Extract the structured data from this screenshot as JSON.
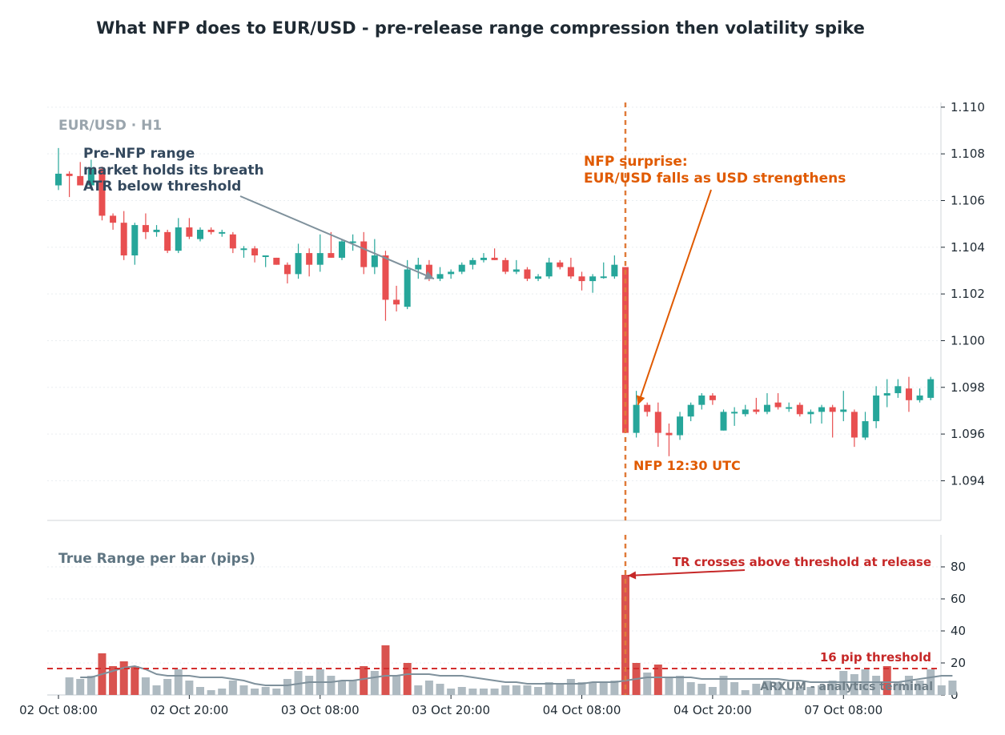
{
  "title": "What NFP does to EUR/USD - pre-release range compression then volatility spike",
  "watermark": "ARXUM - analytics terminal",
  "chart_data": [
    {
      "type": "candlestick",
      "panel_label": "EUR/USD · H1",
      "ylim": [
        1.0923,
        1.1102
      ],
      "yticks": [
        "1.094",
        "1.096",
        "1.098",
        "1.100",
        "1.102",
        "1.104",
        "1.106",
        "1.108",
        "1.110"
      ],
      "xtick_labels": [
        "02 Oct 08:00",
        "02 Oct 20:00",
        "03 Oct 08:00",
        "03 Oct 20:00",
        "04 Oct 08:00",
        "04 Oct 20:00",
        "07 Oct 08:00"
      ],
      "xtick_bar_index": [
        0,
        12,
        24,
        36,
        48,
        60,
        72
      ],
      "release_bar_index": 52,
      "candles": [
        {
          "o": 1.10665,
          "h": 1.10825,
          "l": 1.10645,
          "c": 1.10715
        },
        {
          "o": 1.10715,
          "h": 1.10725,
          "l": 1.10615,
          "c": 1.10705
        },
        {
          "o": 1.10705,
          "h": 1.10765,
          "l": 1.10665,
          "c": 1.10665
        },
        {
          "o": 1.10665,
          "h": 1.10775,
          "l": 1.10655,
          "c": 1.10735
        },
        {
          "o": 1.10735,
          "h": 1.10745,
          "l": 1.10515,
          "c": 1.10535
        },
        {
          "o": 1.10535,
          "h": 1.10545,
          "l": 1.10475,
          "c": 1.10505
        },
        {
          "o": 1.10505,
          "h": 1.10555,
          "l": 1.10345,
          "c": 1.10365
        },
        {
          "o": 1.10365,
          "h": 1.10505,
          "l": 1.10325,
          "c": 1.10495
        },
        {
          "o": 1.10495,
          "h": 1.10545,
          "l": 1.10435,
          "c": 1.10465
        },
        {
          "o": 1.10465,
          "h": 1.10495,
          "l": 1.10445,
          "c": 1.10475
        },
        {
          "o": 1.10465,
          "h": 1.10475,
          "l": 1.10375,
          "c": 1.10385
        },
        {
          "o": 1.10385,
          "h": 1.10525,
          "l": 1.10375,
          "c": 1.10485
        },
        {
          "o": 1.10485,
          "h": 1.10525,
          "l": 1.10435,
          "c": 1.10445
        },
        {
          "o": 1.10435,
          "h": 1.10485,
          "l": 1.10425,
          "c": 1.10475
        },
        {
          "o": 1.10475,
          "h": 1.10485,
          "l": 1.10455,
          "c": 1.10465
        },
        {
          "o": 1.10465,
          "h": 1.10475,
          "l": 1.10445,
          "c": 1.10465
        },
        {
          "o": 1.10455,
          "h": 1.10465,
          "l": 1.10375,
          "c": 1.10395
        },
        {
          "o": 1.10395,
          "h": 1.10405,
          "l": 1.10355,
          "c": 1.10395
        },
        {
          "o": 1.10395,
          "h": 1.10405,
          "l": 1.10335,
          "c": 1.10365
        },
        {
          "o": 1.10365,
          "h": 1.10365,
          "l": 1.10315,
          "c": 1.10365
        },
        {
          "o": 1.10355,
          "h": 1.10355,
          "l": 1.10325,
          "c": 1.10325
        },
        {
          "o": 1.10325,
          "h": 1.10335,
          "l": 1.10245,
          "c": 1.10285
        },
        {
          "o": 1.10285,
          "h": 1.10415,
          "l": 1.10265,
          "c": 1.10375
        },
        {
          "o": 1.10375,
          "h": 1.10395,
          "l": 1.10275,
          "c": 1.10325
        },
        {
          "o": 1.10325,
          "h": 1.10455,
          "l": 1.10295,
          "c": 1.10375
        },
        {
          "o": 1.10375,
          "h": 1.10465,
          "l": 1.10355,
          "c": 1.10355
        },
        {
          "o": 1.10355,
          "h": 1.10435,
          "l": 1.10345,
          "c": 1.10425
        },
        {
          "o": 1.10425,
          "h": 1.10455,
          "l": 1.10385,
          "c": 1.10425
        },
        {
          "o": 1.10425,
          "h": 1.10465,
          "l": 1.10285,
          "c": 1.10315
        },
        {
          "o": 1.10315,
          "h": 1.10435,
          "l": 1.10285,
          "c": 1.10365
        },
        {
          "o": 1.10365,
          "h": 1.10385,
          "l": 1.10085,
          "c": 1.10175
        },
        {
          "o": 1.10175,
          "h": 1.10235,
          "l": 1.10125,
          "c": 1.10155
        },
        {
          "o": 1.10145,
          "h": 1.10345,
          "l": 1.10135,
          "c": 1.10305
        },
        {
          "o": 1.10305,
          "h": 1.10355,
          "l": 1.10265,
          "c": 1.10325
        },
        {
          "o": 1.10325,
          "h": 1.10345,
          "l": 1.10255,
          "c": 1.10265
        },
        {
          "o": 1.10265,
          "h": 1.10315,
          "l": 1.10255,
          "c": 1.10285
        },
        {
          "o": 1.10285,
          "h": 1.10305,
          "l": 1.10265,
          "c": 1.10295
        },
        {
          "o": 1.10295,
          "h": 1.10335,
          "l": 1.10285,
          "c": 1.10325
        },
        {
          "o": 1.10325,
          "h": 1.10355,
          "l": 1.10305,
          "c": 1.10345
        },
        {
          "o": 1.10345,
          "h": 1.10375,
          "l": 1.10335,
          "c": 1.10355
        },
        {
          "o": 1.10355,
          "h": 1.10395,
          "l": 1.10345,
          "c": 1.10345
        },
        {
          "o": 1.10345,
          "h": 1.10355,
          "l": 1.10285,
          "c": 1.10295
        },
        {
          "o": 1.10295,
          "h": 1.10345,
          "l": 1.10285,
          "c": 1.10305
        },
        {
          "o": 1.10305,
          "h": 1.10315,
          "l": 1.10255,
          "c": 1.10265
        },
        {
          "o": 1.10265,
          "h": 1.10285,
          "l": 1.10255,
          "c": 1.10275
        },
        {
          "o": 1.10275,
          "h": 1.10355,
          "l": 1.10265,
          "c": 1.10335
        },
        {
          "o": 1.10335,
          "h": 1.10345,
          "l": 1.10305,
          "c": 1.10315
        },
        {
          "o": 1.10315,
          "h": 1.10355,
          "l": 1.10265,
          "c": 1.10275
        },
        {
          "o": 1.10275,
          "h": 1.10295,
          "l": 1.10215,
          "c": 1.10255
        },
        {
          "o": 1.10255,
          "h": 1.10285,
          "l": 1.10205,
          "c": 1.10275
        },
        {
          "o": 1.10275,
          "h": 1.10335,
          "l": 1.10265,
          "c": 1.10275
        },
        {
          "o": 1.10275,
          "h": 1.10365,
          "l": 1.10265,
          "c": 1.10325
        },
        {
          "o": 1.10315,
          "h": 1.10315,
          "l": 1.09605,
          "c": 1.09605
        },
        {
          "o": 1.09605,
          "h": 1.09785,
          "l": 1.09585,
          "c": 1.09725
        },
        {
          "o": 1.09725,
          "h": 1.09735,
          "l": 1.09675,
          "c": 1.09695
        },
        {
          "o": 1.09695,
          "h": 1.09735,
          "l": 1.09545,
          "c": 1.09605
        },
        {
          "o": 1.09605,
          "h": 1.09645,
          "l": 1.09505,
          "c": 1.09595
        },
        {
          "o": 1.09595,
          "h": 1.09695,
          "l": 1.09575,
          "c": 1.09675
        },
        {
          "o": 1.09675,
          "h": 1.09735,
          "l": 1.09655,
          "c": 1.09725
        },
        {
          "o": 1.09725,
          "h": 1.09775,
          "l": 1.09705,
          "c": 1.09765
        },
        {
          "o": 1.09765,
          "h": 1.09775,
          "l": 1.09725,
          "c": 1.09745
        },
        {
          "o": 1.09615,
          "h": 1.09705,
          "l": 1.09615,
          "c": 1.09695
        },
        {
          "o": 1.09695,
          "h": 1.09715,
          "l": 1.09635,
          "c": 1.09695
        },
        {
          "o": 1.09685,
          "h": 1.09725,
          "l": 1.09675,
          "c": 1.09705
        },
        {
          "o": 1.09705,
          "h": 1.09755,
          "l": 1.09685,
          "c": 1.09695
        },
        {
          "o": 1.09695,
          "h": 1.09775,
          "l": 1.09685,
          "c": 1.09725
        },
        {
          "o": 1.09735,
          "h": 1.09775,
          "l": 1.09705,
          "c": 1.09715
        },
        {
          "o": 1.09715,
          "h": 1.09735,
          "l": 1.09695,
          "c": 1.09715
        },
        {
          "o": 1.09725,
          "h": 1.09735,
          "l": 1.09675,
          "c": 1.09685
        },
        {
          "o": 1.09685,
          "h": 1.09705,
          "l": 1.09645,
          "c": 1.09695
        },
        {
          "o": 1.09695,
          "h": 1.09725,
          "l": 1.09645,
          "c": 1.09715
        },
        {
          "o": 1.09715,
          "h": 1.09725,
          "l": 1.09585,
          "c": 1.09695
        },
        {
          "o": 1.09695,
          "h": 1.09785,
          "l": 1.09655,
          "c": 1.09705
        },
        {
          "o": 1.09695,
          "h": 1.09705,
          "l": 1.09545,
          "c": 1.09585
        },
        {
          "o": 1.09585,
          "h": 1.09695,
          "l": 1.09575,
          "c": 1.09655
        },
        {
          "o": 1.09655,
          "h": 1.09805,
          "l": 1.09625,
          "c": 1.09765
        },
        {
          "o": 1.09765,
          "h": 1.09835,
          "l": 1.09715,
          "c": 1.09775
        },
        {
          "o": 1.09775,
          "h": 1.09835,
          "l": 1.09755,
          "c": 1.09805
        },
        {
          "o": 1.09795,
          "h": 1.09845,
          "l": 1.09695,
          "c": 1.09745
        },
        {
          "o": 1.09745,
          "h": 1.09795,
          "l": 1.09735,
          "c": 1.09765
        },
        {
          "o": 1.09755,
          "h": 1.09845,
          "l": 1.09745,
          "c": 1.09835
        }
      ],
      "annotations": [
        {
          "name": "pre-nfp-note",
          "lines": [
            "Pre-NFP range",
            "market holds its breath",
            "ATR below threshold"
          ],
          "arrow_to_bar": 34,
          "arrow_to_price": 1.10265
        },
        {
          "name": "nfp-surprise-note",
          "lines": [
            "NFP surprise:",
            "EUR/USD falls as USD strengthens"
          ],
          "arrow_to_bar": 53,
          "arrow_to_price": 1.09725
        },
        {
          "name": "release-time-label",
          "lines": [
            "NFP 12:30 UTC"
          ]
        }
      ],
      "colors": {
        "up": "#26a69a",
        "down": "#e84f50",
        "release_line": "#e07b39",
        "pre_note": "#34495e",
        "pre_arrow": "#7f919c",
        "nfp_note": "#e05a00"
      }
    },
    {
      "type": "bar",
      "panel_label": "True Range per bar (pips)",
      "ylim": [
        0,
        100
      ],
      "yticks": [
        "0",
        "20",
        "40",
        "60",
        "80"
      ],
      "threshold": 16.5,
      "threshold_label": "16 pip threshold",
      "release_annotation": "TR crosses above threshold at release",
      "values": [
        0,
        11,
        10,
        12,
        26,
        18,
        21,
        18,
        11,
        6,
        10,
        16,
        9,
        5,
        3,
        4,
        9,
        6,
        4,
        5,
        4,
        10,
        15,
        12,
        16,
        12,
        9,
        9,
        18,
        15,
        31,
        12,
        20,
        6,
        9,
        7,
        4,
        5,
        4,
        4,
        4,
        6,
        6,
        6,
        5,
        8,
        7,
        10,
        8,
        8,
        8,
        9,
        75,
        20,
        14,
        19,
        11,
        12,
        8,
        7,
        5,
        12,
        8,
        3,
        7,
        9,
        8,
        4,
        5,
        5,
        6,
        9,
        15,
        13,
        16,
        12,
        18,
        8,
        12,
        9,
        16,
        6,
        9
      ],
      "atr_line": [
        null,
        null,
        11,
        11,
        13,
        15,
        17,
        18,
        16,
        13,
        12,
        12,
        12,
        11,
        11,
        11,
        10,
        9,
        7,
        6,
        6,
        6,
        7,
        8,
        8,
        8,
        9,
        9,
        10,
        11,
        12,
        12,
        13,
        13,
        13,
        12,
        12,
        12,
        11,
        10,
        9,
        8,
        8,
        7,
        7,
        7,
        7,
        7,
        7,
        8,
        8,
        8,
        9,
        10,
        11,
        11,
        11,
        11,
        11,
        10,
        10,
        10,
        10,
        10,
        10,
        10,
        10,
        9,
        9,
        8,
        8,
        8,
        8,
        8,
        8,
        8,
        8,
        8,
        9,
        10,
        11,
        12,
        12
      ],
      "colors": {
        "normal": "#aebac1",
        "above": "#d9534f",
        "threshold": "#d32f2f",
        "atr": "#7f919c"
      }
    }
  ]
}
